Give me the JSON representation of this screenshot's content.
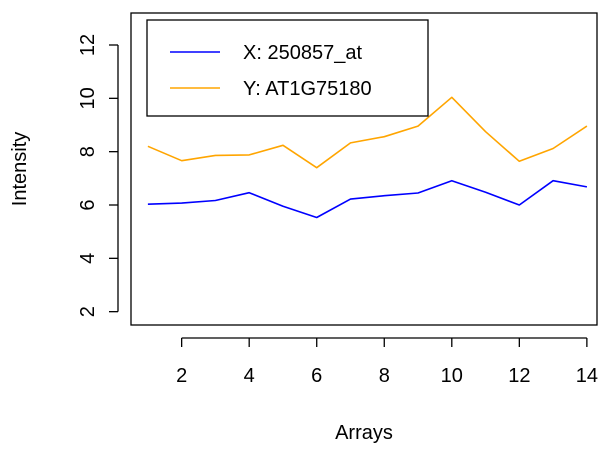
{
  "chart_data": {
    "type": "line",
    "xlabel": "Arrays",
    "ylabel": "Intensity",
    "xlim": [
      0.5,
      14.3
    ],
    "ylim": [
      1.5,
      13.2
    ],
    "x_ticks": [
      2,
      4,
      6,
      8,
      10,
      12,
      14
    ],
    "y_ticks": [
      2,
      4,
      6,
      8,
      10,
      12
    ],
    "x": [
      1,
      2,
      3,
      4,
      5,
      6,
      7,
      8,
      9,
      10,
      11,
      12,
      13,
      14
    ],
    "legend_position": "top-left",
    "series": [
      {
        "name": "X: 250857_at",
        "color": "#0000ff",
        "values": [
          6.03,
          6.07,
          6.17,
          6.46,
          5.95,
          5.53,
          6.22,
          6.35,
          6.45,
          6.91,
          6.48,
          6.0,
          6.91,
          6.68
        ]
      },
      {
        "name": "Y: AT1G75180",
        "color": "#ffa500",
        "values": [
          8.2,
          7.66,
          7.86,
          7.88,
          8.24,
          7.4,
          8.33,
          8.56,
          8.96,
          10.04,
          8.75,
          7.64,
          8.12,
          8.96
        ]
      }
    ]
  }
}
